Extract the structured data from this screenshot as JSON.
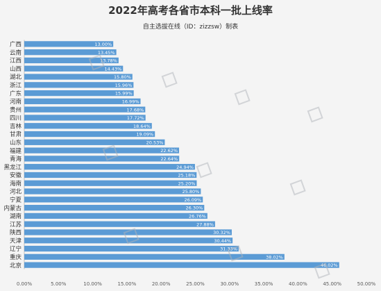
{
  "chart_data": {
    "type": "bar",
    "orientation": "horizontal",
    "title": "2022年高考各省市本科一批上线率",
    "subtitle": "自主选拔在线（ID：zizzsw）制表",
    "categories": [
      "广西",
      "云南",
      "江西",
      "山西",
      "湖北",
      "浙江",
      "广东",
      "河南",
      "贵州",
      "四川",
      "吉林",
      "甘肃",
      "山东",
      "福建",
      "青海",
      "黑龙江",
      "安徽",
      "海南",
      "河北",
      "宁夏",
      "内蒙古",
      "湖南",
      "江苏",
      "陕西",
      "天津",
      "辽宁",
      "重庆",
      "北京"
    ],
    "values": [
      13.0,
      13.45,
      13.78,
      14.43,
      15.8,
      15.96,
      15.99,
      16.99,
      17.68,
      17.72,
      18.64,
      19.09,
      20.53,
      22.62,
      22.64,
      24.94,
      25.18,
      25.2,
      25.8,
      26.09,
      26.3,
      26.76,
      27.88,
      30.32,
      30.44,
      31.33,
      38.02,
      46.02
    ],
    "value_labels": [
      "13.00%",
      "13.45%",
      "13.78%",
      "14.43%",
      "15.80%",
      "15.96%",
      "15.99%",
      "16.99%",
      "17.68%",
      "17.72%",
      "18.64%",
      "19.09%",
      "20.53%",
      "22.62%",
      "22.64%",
      "24.94%",
      "25.18%",
      "25.20%",
      "25.80%",
      "26.09%",
      "26.30%",
      "26.76%",
      "27.88%",
      "30.32%",
      "30.44%",
      "31.33%",
      "38.02%",
      "46.02%"
    ],
    "xlim": [
      0,
      50
    ],
    "x_ticks": [
      "0.00%",
      "5.00%",
      "10.00%",
      "15.00%",
      "20.00%",
      "25.00%",
      "30.00%",
      "35.00%",
      "40.00%",
      "45.00%",
      "50.00%"
    ],
    "grid": false,
    "bar_color": "#5b9bd5"
  }
}
